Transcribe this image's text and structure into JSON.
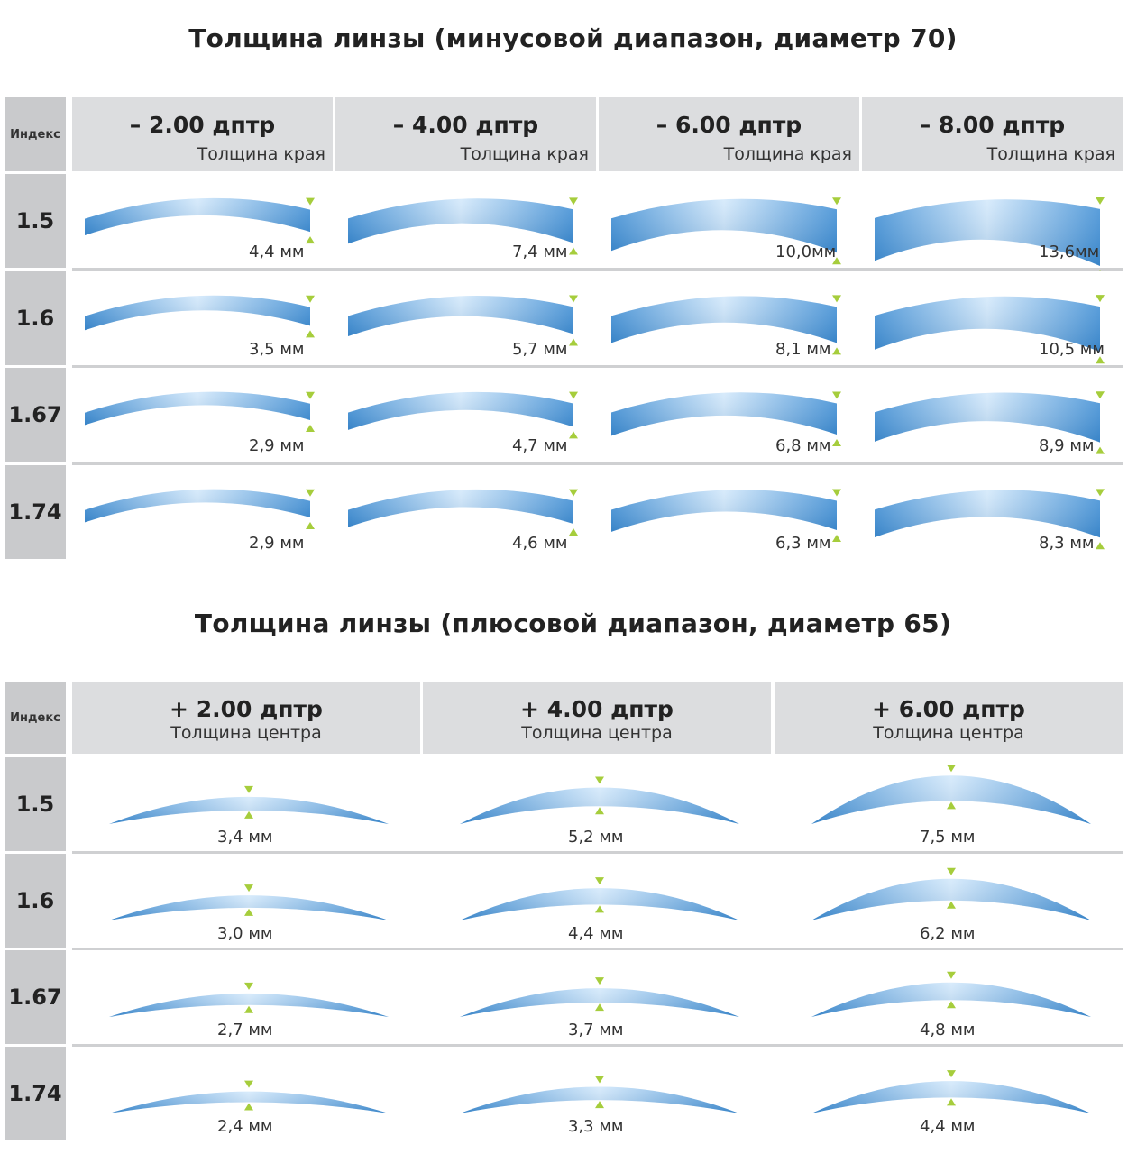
{
  "minus": {
    "title": "Толщина линзы (минусовой диапазон, диаметр 70)",
    "index_header": "Индекс",
    "columns": [
      {
        "power": "– 2.00 дптр",
        "sub": "Толщина края"
      },
      {
        "power": "– 4.00 дптр",
        "sub": "Толщина края"
      },
      {
        "power": "– 6.00 дптр",
        "sub": "Толщина края"
      },
      {
        "power": "– 8.00 дптр",
        "sub": "Толщина края"
      }
    ],
    "rows": [
      {
        "index": "1.5",
        "values": [
          "4,4 мм",
          "7,4 мм",
          "10,0мм",
          "13,6мм"
        ]
      },
      {
        "index": "1.6",
        "values": [
          "3,5 мм",
          "5,7 мм",
          "8,1 мм",
          "10,5 мм"
        ]
      },
      {
        "index": "1.67",
        "values": [
          "2,9 мм",
          "4,7 мм",
          "6,8 мм",
          "8,9 мм"
        ]
      },
      {
        "index": "1.74",
        "values": [
          "2,9 мм",
          "4,6 мм",
          "6,3 мм",
          "8,3 мм"
        ]
      }
    ],
    "thickness_mm": [
      [
        4.4,
        7.4,
        10.0,
        13.6
      ],
      [
        3.5,
        5.7,
        8.1,
        10.5
      ],
      [
        2.9,
        4.7,
        6.8,
        8.9
      ],
      [
        2.9,
        4.6,
        6.3,
        8.3
      ]
    ]
  },
  "plus": {
    "title": "Толщина линзы (плюсовой диапазон, диаметр 65)",
    "index_header": "Индекс",
    "columns": [
      {
        "power": "+ 2.00 дптр",
        "sub": "Толщина центра"
      },
      {
        "power": "+ 4.00 дптр",
        "sub": "Толщина центра"
      },
      {
        "power": "+ 6.00 дптр",
        "sub": "Толщина центра"
      }
    ],
    "rows": [
      {
        "index": "1.5",
        "values": [
          "3,4 мм",
          "5,2 мм",
          "7,5 мм"
        ]
      },
      {
        "index": "1.6",
        "values": [
          "3,0 мм",
          "4,4 мм",
          "6,2 мм"
        ]
      },
      {
        "index": "1.67",
        "values": [
          "2,7 мм",
          "3,7 мм",
          "4,8 мм"
        ]
      },
      {
        "index": "1.74",
        "values": [
          "2,4 мм",
          "3,3 мм",
          "4,4 мм"
        ]
      }
    ],
    "thickness_mm": [
      [
        3.4,
        5.2,
        7.5
      ],
      [
        3.0,
        4.4,
        6.2
      ],
      [
        2.7,
        3.7,
        4.8
      ],
      [
        2.4,
        3.3,
        4.4
      ]
    ]
  },
  "colors": {
    "lens_dark": "#3f8fd6",
    "lens_light": "#cfe6fb",
    "marker": "#a6cd3c",
    "index_bg": "#c9cacc",
    "header_bg": "#dcdddf"
  }
}
